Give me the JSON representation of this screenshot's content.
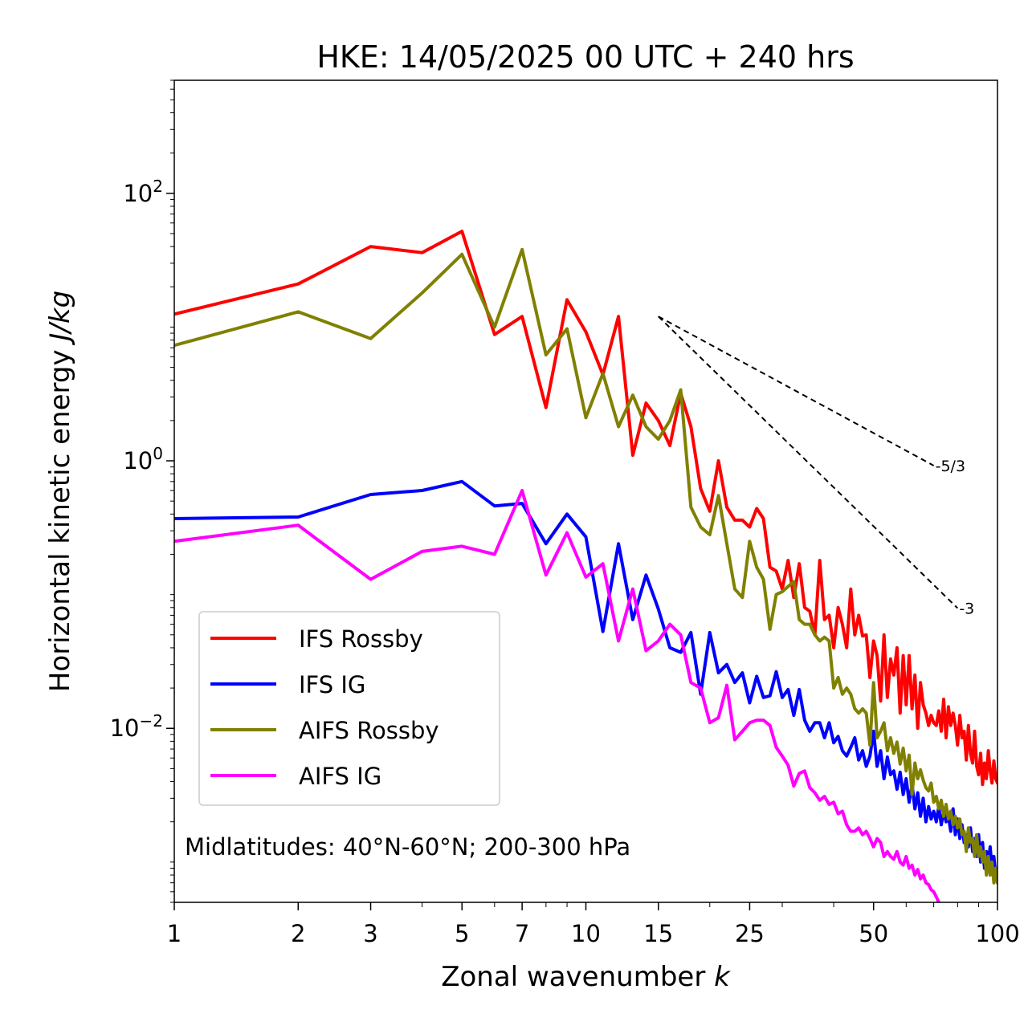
{
  "chart_data": {
    "type": "line",
    "title": "HKE: 14/05/2025 00 UTC + 240 hrs",
    "xlabel_text": "Zonal wavenumber ",
    "xlabel_var": "k",
    "ylabel_text": "Horizontal kinetic energy ",
    "ylabel_unit": "J/kg",
    "x_scale": "log",
    "y_scale": "log",
    "xlim": [
      1,
      100
    ],
    "ylim": [
      0.0005,
      700
    ],
    "grid": false,
    "xticks": [
      {
        "value": 1,
        "label": "1"
      },
      {
        "value": 2,
        "label": "2"
      },
      {
        "value": 3,
        "label": "3"
      },
      {
        "value": 5,
        "label": "5"
      },
      {
        "value": 7,
        "label": "7"
      },
      {
        "value": 10,
        "label": "10"
      },
      {
        "value": 15,
        "label": "15"
      },
      {
        "value": 25,
        "label": "25"
      },
      {
        "value": 50,
        "label": "50"
      },
      {
        "value": 100,
        "label": "100"
      }
    ],
    "yticks": [
      {
        "value": 100,
        "base": "10",
        "exp": "2"
      },
      {
        "value": 1,
        "base": "10",
        "exp": "0"
      },
      {
        "value": 0.01,
        "base": "10",
        "exp": "−2"
      }
    ],
    "annotation": "Midlatitudes: 40°N-60°N; 200-300 hPa",
    "legend_position": "lower-left",
    "reference_slopes": [
      {
        "label": "-5/3",
        "slope": -1.6667,
        "x_start": 15,
        "x_end": 70,
        "y_start": 12
      },
      {
        "label": "-3",
        "slope": -3,
        "x_start": 15,
        "x_end": 80,
        "y_start": 12
      }
    ],
    "series": [
      {
        "name": "IFS Rossby",
        "color": "#ff0000",
        "x": [
          1,
          2,
          3,
          4,
          5,
          6,
          7,
          8,
          9,
          10,
          11,
          12,
          13,
          14,
          15,
          16,
          17,
          18,
          19,
          20,
          21,
          22,
          23,
          24,
          25,
          26,
          27,
          28,
          29,
          30,
          31,
          32,
          33,
          34,
          35,
          36,
          37,
          38,
          39,
          40,
          41,
          42,
          43,
          44,
          45,
          46,
          47,
          48,
          49,
          50,
          51,
          52,
          53,
          54,
          55,
          56,
          57,
          58,
          59,
          60,
          61,
          62,
          63,
          64,
          65,
          66,
          67,
          68,
          69,
          70,
          71,
          72,
          73,
          74,
          75,
          76,
          77,
          78,
          79,
          80,
          81,
          82,
          83,
          84,
          85,
          86,
          87,
          88,
          89,
          90,
          91,
          92,
          93,
          94,
          95,
          96,
          97,
          98,
          99,
          100
        ],
        "y": [
          12.5,
          21,
          40,
          36,
          52,
          8.8,
          12,
          2.5,
          16,
          9.2,
          4.4,
          12,
          1.1,
          2.7,
          2.0,
          1.3,
          3.2,
          1.8,
          0.62,
          0.42,
          1.0,
          0.45,
          0.36,
          0.36,
          0.32,
          0.44,
          0.37,
          0.16,
          0.15,
          0.11,
          0.18,
          0.095,
          0.17,
          0.08,
          0.075,
          0.05,
          0.18,
          0.065,
          0.07,
          0.04,
          0.08,
          0.06,
          0.04,
          0.11,
          0.05,
          0.07,
          0.049,
          0.05,
          0.024,
          0.045,
          0.035,
          0.016,
          0.05,
          0.017,
          0.033,
          0.025,
          0.04,
          0.013,
          0.035,
          0.015,
          0.035,
          0.014,
          0.025,
          0.01,
          0.022,
          0.015,
          0.013,
          0.0105,
          0.0125,
          0.011,
          0.0105,
          0.0135,
          0.0095,
          0.0165,
          0.0085,
          0.0145,
          0.0105,
          0.013,
          0.0105,
          0.0075,
          0.0125,
          0.0085,
          0.0095,
          0.0058,
          0.0105,
          0.0065,
          0.0055,
          0.0095,
          0.0052,
          0.0045,
          0.0065,
          0.0038,
          0.0055,
          0.0042,
          0.0068,
          0.0048,
          0.0039,
          0.0057,
          0.0042,
          0.0039
        ]
      },
      {
        "name": "IFS IG",
        "color": "#0000ff",
        "x": [
          1,
          2,
          3,
          4,
          5,
          6,
          7,
          8,
          9,
          10,
          11,
          12,
          13,
          14,
          15,
          16,
          17,
          18,
          19,
          20,
          21,
          22,
          23,
          24,
          25,
          26,
          27,
          28,
          29,
          30,
          31,
          32,
          33,
          34,
          35,
          36,
          37,
          38,
          39,
          40,
          41,
          42,
          43,
          44,
          45,
          46,
          47,
          48,
          49,
          50,
          51,
          52,
          53,
          54,
          55,
          56,
          57,
          58,
          59,
          60,
          61,
          62,
          63,
          64,
          65,
          66,
          67,
          68,
          69,
          70,
          71,
          72,
          73,
          74,
          75,
          76,
          77,
          78,
          79,
          80,
          81,
          82,
          83,
          84,
          85,
          86,
          87,
          88,
          89,
          90,
          91,
          92,
          93,
          94,
          95,
          96,
          97,
          98,
          99,
          100
        ],
        "y": [
          0.37,
          0.38,
          0.56,
          0.6,
          0.7,
          0.46,
          0.48,
          0.24,
          0.4,
          0.27,
          0.053,
          0.24,
          0.065,
          0.14,
          0.078,
          0.04,
          0.037,
          0.052,
          0.018,
          0.052,
          0.026,
          0.03,
          0.022,
          0.026,
          0.0155,
          0.0245,
          0.017,
          0.0175,
          0.0265,
          0.017,
          0.0195,
          0.0125,
          0.0195,
          0.0115,
          0.0095,
          0.011,
          0.011,
          0.0085,
          0.011,
          0.0078,
          0.0087,
          0.0068,
          0.0062,
          0.0072,
          0.0085,
          0.0058,
          0.0068,
          0.0052,
          0.0062,
          0.0095,
          0.0052,
          0.0068,
          0.0042,
          0.0061,
          0.0045,
          0.0048,
          0.0035,
          0.0047,
          0.0032,
          0.0042,
          0.0028,
          0.0038,
          0.0025,
          0.0033,
          0.0022,
          0.003,
          0.002,
          0.0026,
          0.0021,
          0.0024,
          0.002,
          0.0026,
          0.0019,
          0.0024,
          0.002,
          0.0022,
          0.0017,
          0.0025,
          0.0016,
          0.0021,
          0.0015,
          0.0019,
          0.0014,
          0.0016,
          0.0013,
          0.0018,
          0.0012,
          0.0015,
          0.0011,
          0.0016,
          0.001,
          0.0014,
          0.0009,
          0.0012,
          0.001,
          0.0013,
          0.0009,
          0.0011,
          0.0008,
          0.0009
        ]
      },
      {
        "name": "AIFS Rossby",
        "color": "#808000",
        "x": [
          1,
          2,
          3,
          4,
          5,
          6,
          7,
          8,
          9,
          10,
          11,
          12,
          13,
          14,
          15,
          16,
          17,
          18,
          19,
          20,
          21,
          22,
          23,
          24,
          25,
          26,
          27,
          28,
          29,
          30,
          31,
          32,
          33,
          34,
          35,
          36,
          37,
          38,
          39,
          40,
          41,
          42,
          43,
          44,
          45,
          46,
          47,
          48,
          49,
          50,
          51,
          52,
          53,
          54,
          55,
          56,
          57,
          58,
          59,
          60,
          61,
          62,
          63,
          64,
          65,
          66,
          67,
          68,
          69,
          70,
          71,
          72,
          73,
          74,
          75,
          76,
          77,
          78,
          79,
          80,
          81,
          82,
          83,
          84,
          85,
          86,
          87,
          88,
          89,
          90,
          91,
          92,
          93,
          94,
          95,
          96,
          97,
          98,
          99,
          100
        ],
        "y": [
          7.3,
          13,
          8.2,
          18,
          35,
          10,
          38,
          6.2,
          9.7,
          2.1,
          4.5,
          1.8,
          3.1,
          1.8,
          1.45,
          2.0,
          3.4,
          0.45,
          0.32,
          0.28,
          0.55,
          0.24,
          0.11,
          0.095,
          0.25,
          0.16,
          0.13,
          0.055,
          0.1,
          0.105,
          0.115,
          0.125,
          0.065,
          0.06,
          0.06,
          0.05,
          0.045,
          0.048,
          0.045,
          0.02,
          0.024,
          0.018,
          0.02,
          0.018,
          0.014,
          0.013,
          0.014,
          0.013,
          0.0075,
          0.022,
          0.0085,
          0.0095,
          0.011,
          0.0068,
          0.0085,
          0.0065,
          0.0079,
          0.0054,
          0.0071,
          0.0048,
          0.0063,
          0.0032,
          0.0055,
          0.0042,
          0.0049,
          0.0041,
          0.0036,
          0.0034,
          0.0039,
          0.0028,
          0.0031,
          0.0025,
          0.0029,
          0.0022,
          0.0027,
          0.0021,
          0.0024,
          0.0019,
          0.0022,
          0.0018,
          0.0021,
          0.0016,
          0.0017,
          0.0012,
          0.0018,
          0.0014,
          0.0015,
          0.0011,
          0.0016,
          0.0011,
          0.0013,
          0.001,
          0.0012,
          0.0008,
          0.0011,
          0.0008,
          0.001,
          0.0007,
          0.0009,
          0.0007
        ]
      },
      {
        "name": "AIFS IG",
        "color": "#ff00ff",
        "x": [
          1,
          2,
          3,
          4,
          5,
          6,
          7,
          8,
          9,
          10,
          11,
          12,
          13,
          14,
          15,
          16,
          17,
          18,
          19,
          20,
          21,
          22,
          23,
          24,
          25,
          26,
          27,
          28,
          29,
          30,
          31,
          32,
          33,
          34,
          35,
          36,
          37,
          38,
          39,
          40,
          41,
          42,
          43,
          44,
          45,
          46,
          47,
          48,
          49,
          50,
          51,
          52,
          53,
          54,
          55,
          56,
          57,
          58,
          59,
          60,
          61,
          62,
          63,
          64,
          65,
          66,
          67,
          68,
          69,
          70,
          71,
          72
        ],
        "y": [
          0.25,
          0.33,
          0.13,
          0.21,
          0.23,
          0.2,
          0.6,
          0.14,
          0.29,
          0.135,
          0.17,
          0.045,
          0.11,
          0.038,
          0.045,
          0.06,
          0.05,
          0.022,
          0.02,
          0.011,
          0.012,
          0.021,
          0.0082,
          0.0095,
          0.011,
          0.0115,
          0.0115,
          0.0105,
          0.0072,
          0.0062,
          0.0053,
          0.0037,
          0.0046,
          0.0048,
          0.0036,
          0.0033,
          0.0029,
          0.0031,
          0.0027,
          0.0028,
          0.0023,
          0.0024,
          0.0019,
          0.0017,
          0.0017,
          0.0018,
          0.0016,
          0.0017,
          0.0015,
          0.0013,
          0.0015,
          0.0014,
          0.0011,
          0.0012,
          0.0011,
          0.00105,
          0.0012,
          0.001,
          0.00095,
          0.0011,
          0.0009,
          0.00095,
          0.0008,
          0.00088,
          0.00075,
          0.0008,
          0.0007,
          0.00068,
          0.00062,
          0.0006,
          0.00055,
          0.0005
        ]
      }
    ]
  }
}
